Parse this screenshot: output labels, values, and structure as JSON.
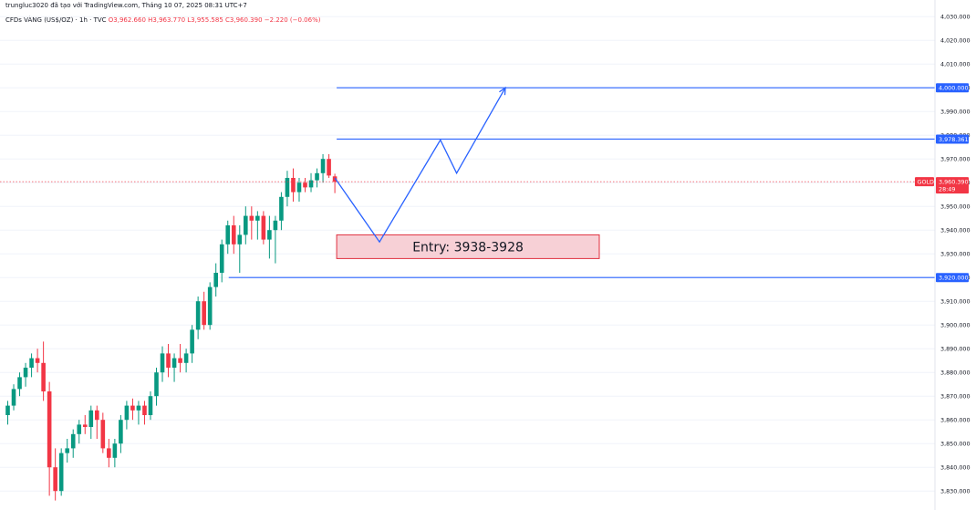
{
  "header": {
    "published_by": "trungluc3020 đã tạo với TradingView.com, Tháng 10 07, 2025 08:31 UTC+7",
    "symbol_desc": "CFDs VÀNG (US$/OZ) · 1h · TVC",
    "open": "O3,962.660",
    "high": "H3,963.770",
    "low": "L3,955.585",
    "close": "C3,960.390",
    "change": "−2.220 (−0.06%)"
  },
  "colors": {
    "up": "#089981",
    "down": "#f23645",
    "drawing": "#2962ff",
    "zone_fill": "#f7d0d6",
    "zone_border": "#e0303f",
    "grid": "#f0f3fa"
  },
  "price_axis": {
    "labels": [
      "4,030.000",
      "4,020.000",
      "4,010.000",
      "4,000.000",
      "3,990.000",
      "3,980.000",
      "3,970.000",
      "3,960.000",
      "3,950.000",
      "3,940.000",
      "3,930.000",
      "3,920.000",
      "3,910.000",
      "3,900.000",
      "3,890.000",
      "3,880.000",
      "3,870.000",
      "3,860.000",
      "3,850.000",
      "3,840.000",
      "3,830.000"
    ],
    "badges": [
      {
        "text": "4,000.000",
        "price": 4000,
        "kind": "level"
      },
      {
        "text": "3,978.361",
        "price": 3978.361,
        "kind": "level"
      },
      {
        "text": "3,920.000",
        "price": 3920,
        "kind": "level"
      }
    ],
    "current": {
      "symbol": "GOLD",
      "price_text": "3,960.390",
      "countdown": "28:49",
      "price": 3960.39
    }
  },
  "zone": {
    "label": "Entry: 3938-3928",
    "top": 3938,
    "bottom": 3928
  },
  "chart_data": {
    "type": "candlestick",
    "y_range": [
      3830,
      4030
    ],
    "levels": [
      4000,
      3978.361,
      3920
    ],
    "candles": [
      {
        "o": 3862,
        "h": 3868,
        "l": 3858,
        "c": 3866
      },
      {
        "o": 3866,
        "h": 3875,
        "l": 3864,
        "c": 3873
      },
      {
        "o": 3873,
        "h": 3880,
        "l": 3870,
        "c": 3878
      },
      {
        "o": 3878,
        "h": 3884,
        "l": 3874,
        "c": 3882
      },
      {
        "o": 3882,
        "h": 3888,
        "l": 3878,
        "c": 3886
      },
      {
        "o": 3886,
        "h": 3890,
        "l": 3880,
        "c": 3884
      },
      {
        "o": 3884,
        "h": 3893,
        "l": 3868,
        "c": 3872
      },
      {
        "o": 3872,
        "h": 3876,
        "l": 3828,
        "c": 3840
      },
      {
        "o": 3840,
        "h": 3848,
        "l": 3826,
        "c": 3830
      },
      {
        "o": 3830,
        "h": 3848,
        "l": 3828,
        "c": 3846
      },
      {
        "o": 3846,
        "h": 3852,
        "l": 3842,
        "c": 3848
      },
      {
        "o": 3848,
        "h": 3856,
        "l": 3844,
        "c": 3854
      },
      {
        "o": 3854,
        "h": 3860,
        "l": 3850,
        "c": 3858
      },
      {
        "o": 3858,
        "h": 3862,
        "l": 3854,
        "c": 3857
      },
      {
        "o": 3857,
        "h": 3866,
        "l": 3852,
        "c": 3864
      },
      {
        "o": 3864,
        "h": 3866,
        "l": 3852,
        "c": 3860
      },
      {
        "o": 3860,
        "h": 3863,
        "l": 3846,
        "c": 3848
      },
      {
        "o": 3848,
        "h": 3852,
        "l": 3840,
        "c": 3844
      },
      {
        "o": 3844,
        "h": 3852,
        "l": 3840,
        "c": 3850
      },
      {
        "o": 3850,
        "h": 3862,
        "l": 3846,
        "c": 3860
      },
      {
        "o": 3860,
        "h": 3868,
        "l": 3856,
        "c": 3866
      },
      {
        "o": 3866,
        "h": 3869,
        "l": 3860,
        "c": 3864
      },
      {
        "o": 3864,
        "h": 3868,
        "l": 3858,
        "c": 3866
      },
      {
        "o": 3866,
        "h": 3868,
        "l": 3858,
        "c": 3862
      },
      {
        "o": 3862,
        "h": 3872,
        "l": 3860,
        "c": 3870
      },
      {
        "o": 3870,
        "h": 3882,
        "l": 3866,
        "c": 3880
      },
      {
        "o": 3880,
        "h": 3891,
        "l": 3876,
        "c": 3888
      },
      {
        "o": 3888,
        "h": 3892,
        "l": 3878,
        "c": 3882
      },
      {
        "o": 3882,
        "h": 3888,
        "l": 3876,
        "c": 3886
      },
      {
        "o": 3886,
        "h": 3892,
        "l": 3880,
        "c": 3884
      },
      {
        "o": 3884,
        "h": 3890,
        "l": 3880,
        "c": 3888
      },
      {
        "o": 3888,
        "h": 3900,
        "l": 3884,
        "c": 3898
      },
      {
        "o": 3898,
        "h": 3912,
        "l": 3894,
        "c": 3910
      },
      {
        "o": 3910,
        "h": 3914,
        "l": 3898,
        "c": 3900
      },
      {
        "o": 3900,
        "h": 3918,
        "l": 3898,
        "c": 3916
      },
      {
        "o": 3916,
        "h": 3926,
        "l": 3912,
        "c": 3922
      },
      {
        "o": 3922,
        "h": 3936,
        "l": 3918,
        "c": 3934
      },
      {
        "o": 3934,
        "h": 3944,
        "l": 3930,
        "c": 3942
      },
      {
        "o": 3942,
        "h": 3946,
        "l": 3930,
        "c": 3934
      },
      {
        "o": 3934,
        "h": 3942,
        "l": 3922,
        "c": 3938
      },
      {
        "o": 3938,
        "h": 3950,
        "l": 3934,
        "c": 3946
      },
      {
        "o": 3946,
        "h": 3950,
        "l": 3936,
        "c": 3944
      },
      {
        "o": 3944,
        "h": 3948,
        "l": 3936,
        "c": 3946
      },
      {
        "o": 3946,
        "h": 3948,
        "l": 3934,
        "c": 3936
      },
      {
        "o": 3936,
        "h": 3946,
        "l": 3928,
        "c": 3940
      },
      {
        "o": 3940,
        "h": 3946,
        "l": 3926,
        "c": 3944
      },
      {
        "o": 3944,
        "h": 3956,
        "l": 3940,
        "c": 3954
      },
      {
        "o": 3954,
        "h": 3965,
        "l": 3950,
        "c": 3962
      },
      {
        "o": 3962,
        "h": 3966,
        "l": 3952,
        "c": 3956
      },
      {
        "o": 3956,
        "h": 3962,
        "l": 3952,
        "c": 3960
      },
      {
        "o": 3960,
        "h": 3962,
        "l": 3956,
        "c": 3958
      },
      {
        "o": 3958,
        "h": 3964,
        "l": 3956,
        "c": 3961
      },
      {
        "o": 3961,
        "h": 3966,
        "l": 3958,
        "c": 3964
      },
      {
        "o": 3964,
        "h": 3972,
        "l": 3960,
        "c": 3970
      },
      {
        "o": 3970,
        "h": 3972,
        "l": 3962,
        "c": 3963
      },
      {
        "o": 3962.66,
        "h": 3963.77,
        "l": 3955.585,
        "c": 3960.39
      }
    ],
    "projection": [
      {
        "candle_offset": 0,
        "price": 3962
      },
      {
        "candle_offset": 11,
        "price": 3935
      },
      {
        "candle_offset": 26,
        "price": 3978
      },
      {
        "candle_offset": 30,
        "price": 3964
      },
      {
        "candle_offset": 42,
        "price": 4000
      }
    ]
  }
}
